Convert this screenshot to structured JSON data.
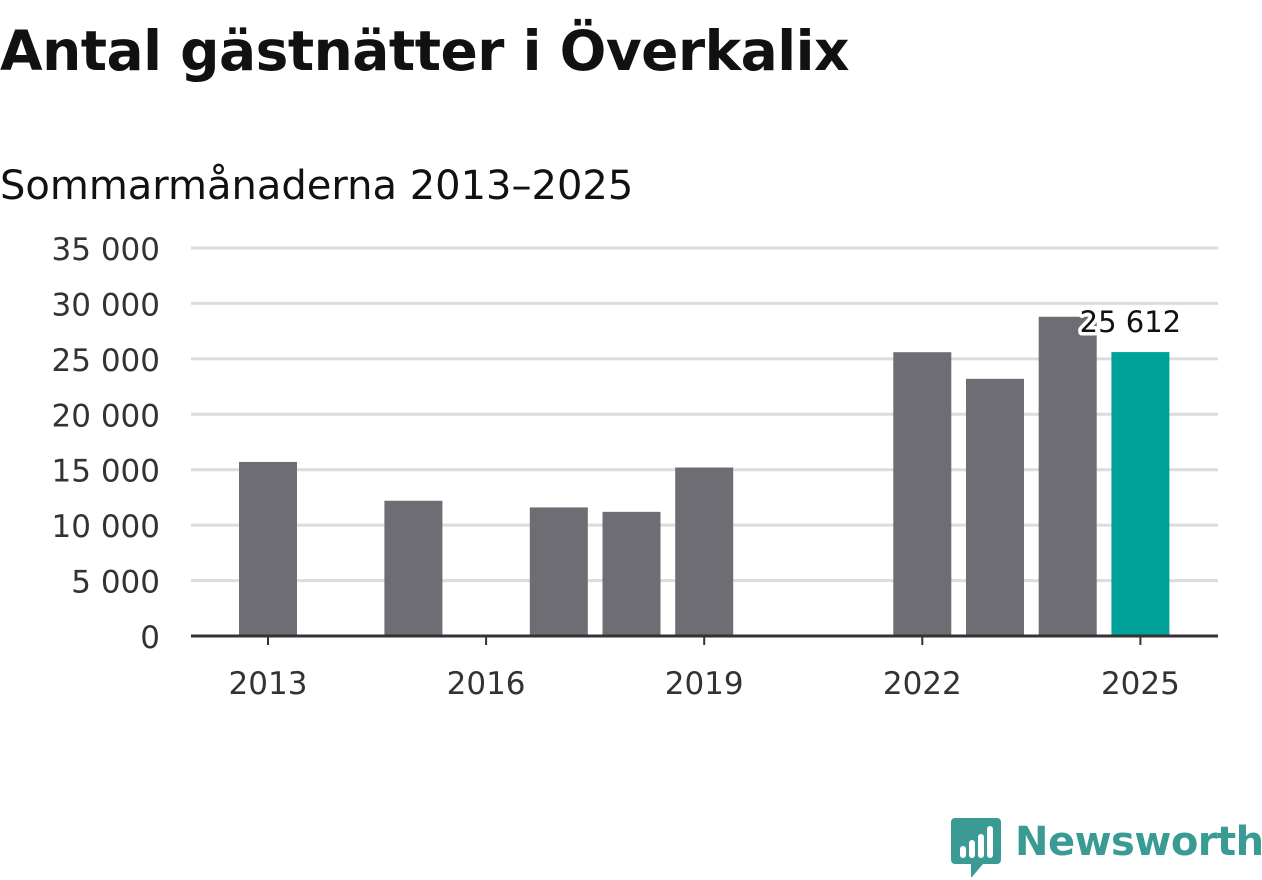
{
  "title": "Antal gästnätter i Överkalix",
  "subtitle": "Sommarmånaderna 2013–2025",
  "brand": {
    "name": "Newsworthy",
    "color": "#3a9b94"
  },
  "colors": {
    "bar": "#6e6d73",
    "highlight": "#00a39a",
    "grid": "#dcdcdc",
    "axis": "#333333"
  },
  "chart_data": {
    "type": "bar",
    "categories": [
      "2013",
      "2014",
      "2015",
      "2016",
      "2017",
      "2018",
      "2019",
      "2020",
      "2021",
      "2022",
      "2023",
      "2024",
      "2025"
    ],
    "values": [
      15700,
      null,
      12200,
      null,
      11600,
      11200,
      15200,
      null,
      null,
      25600,
      23200,
      28800,
      25612
    ],
    "highlight_category": "2025",
    "highlight_label": "25 612",
    "ylim": [
      0,
      35000
    ],
    "yticks": [
      0,
      5000,
      10000,
      15000,
      20000,
      25000,
      30000,
      35000
    ],
    "ytick_labels": [
      "0",
      "5 000",
      "10 000",
      "15 000",
      "20 000",
      "25 000",
      "30 000",
      "35 000"
    ],
    "xtick_labels": [
      "2013",
      "2016",
      "2019",
      "2022",
      "2025"
    ],
    "grid": true,
    "legend": "none"
  }
}
